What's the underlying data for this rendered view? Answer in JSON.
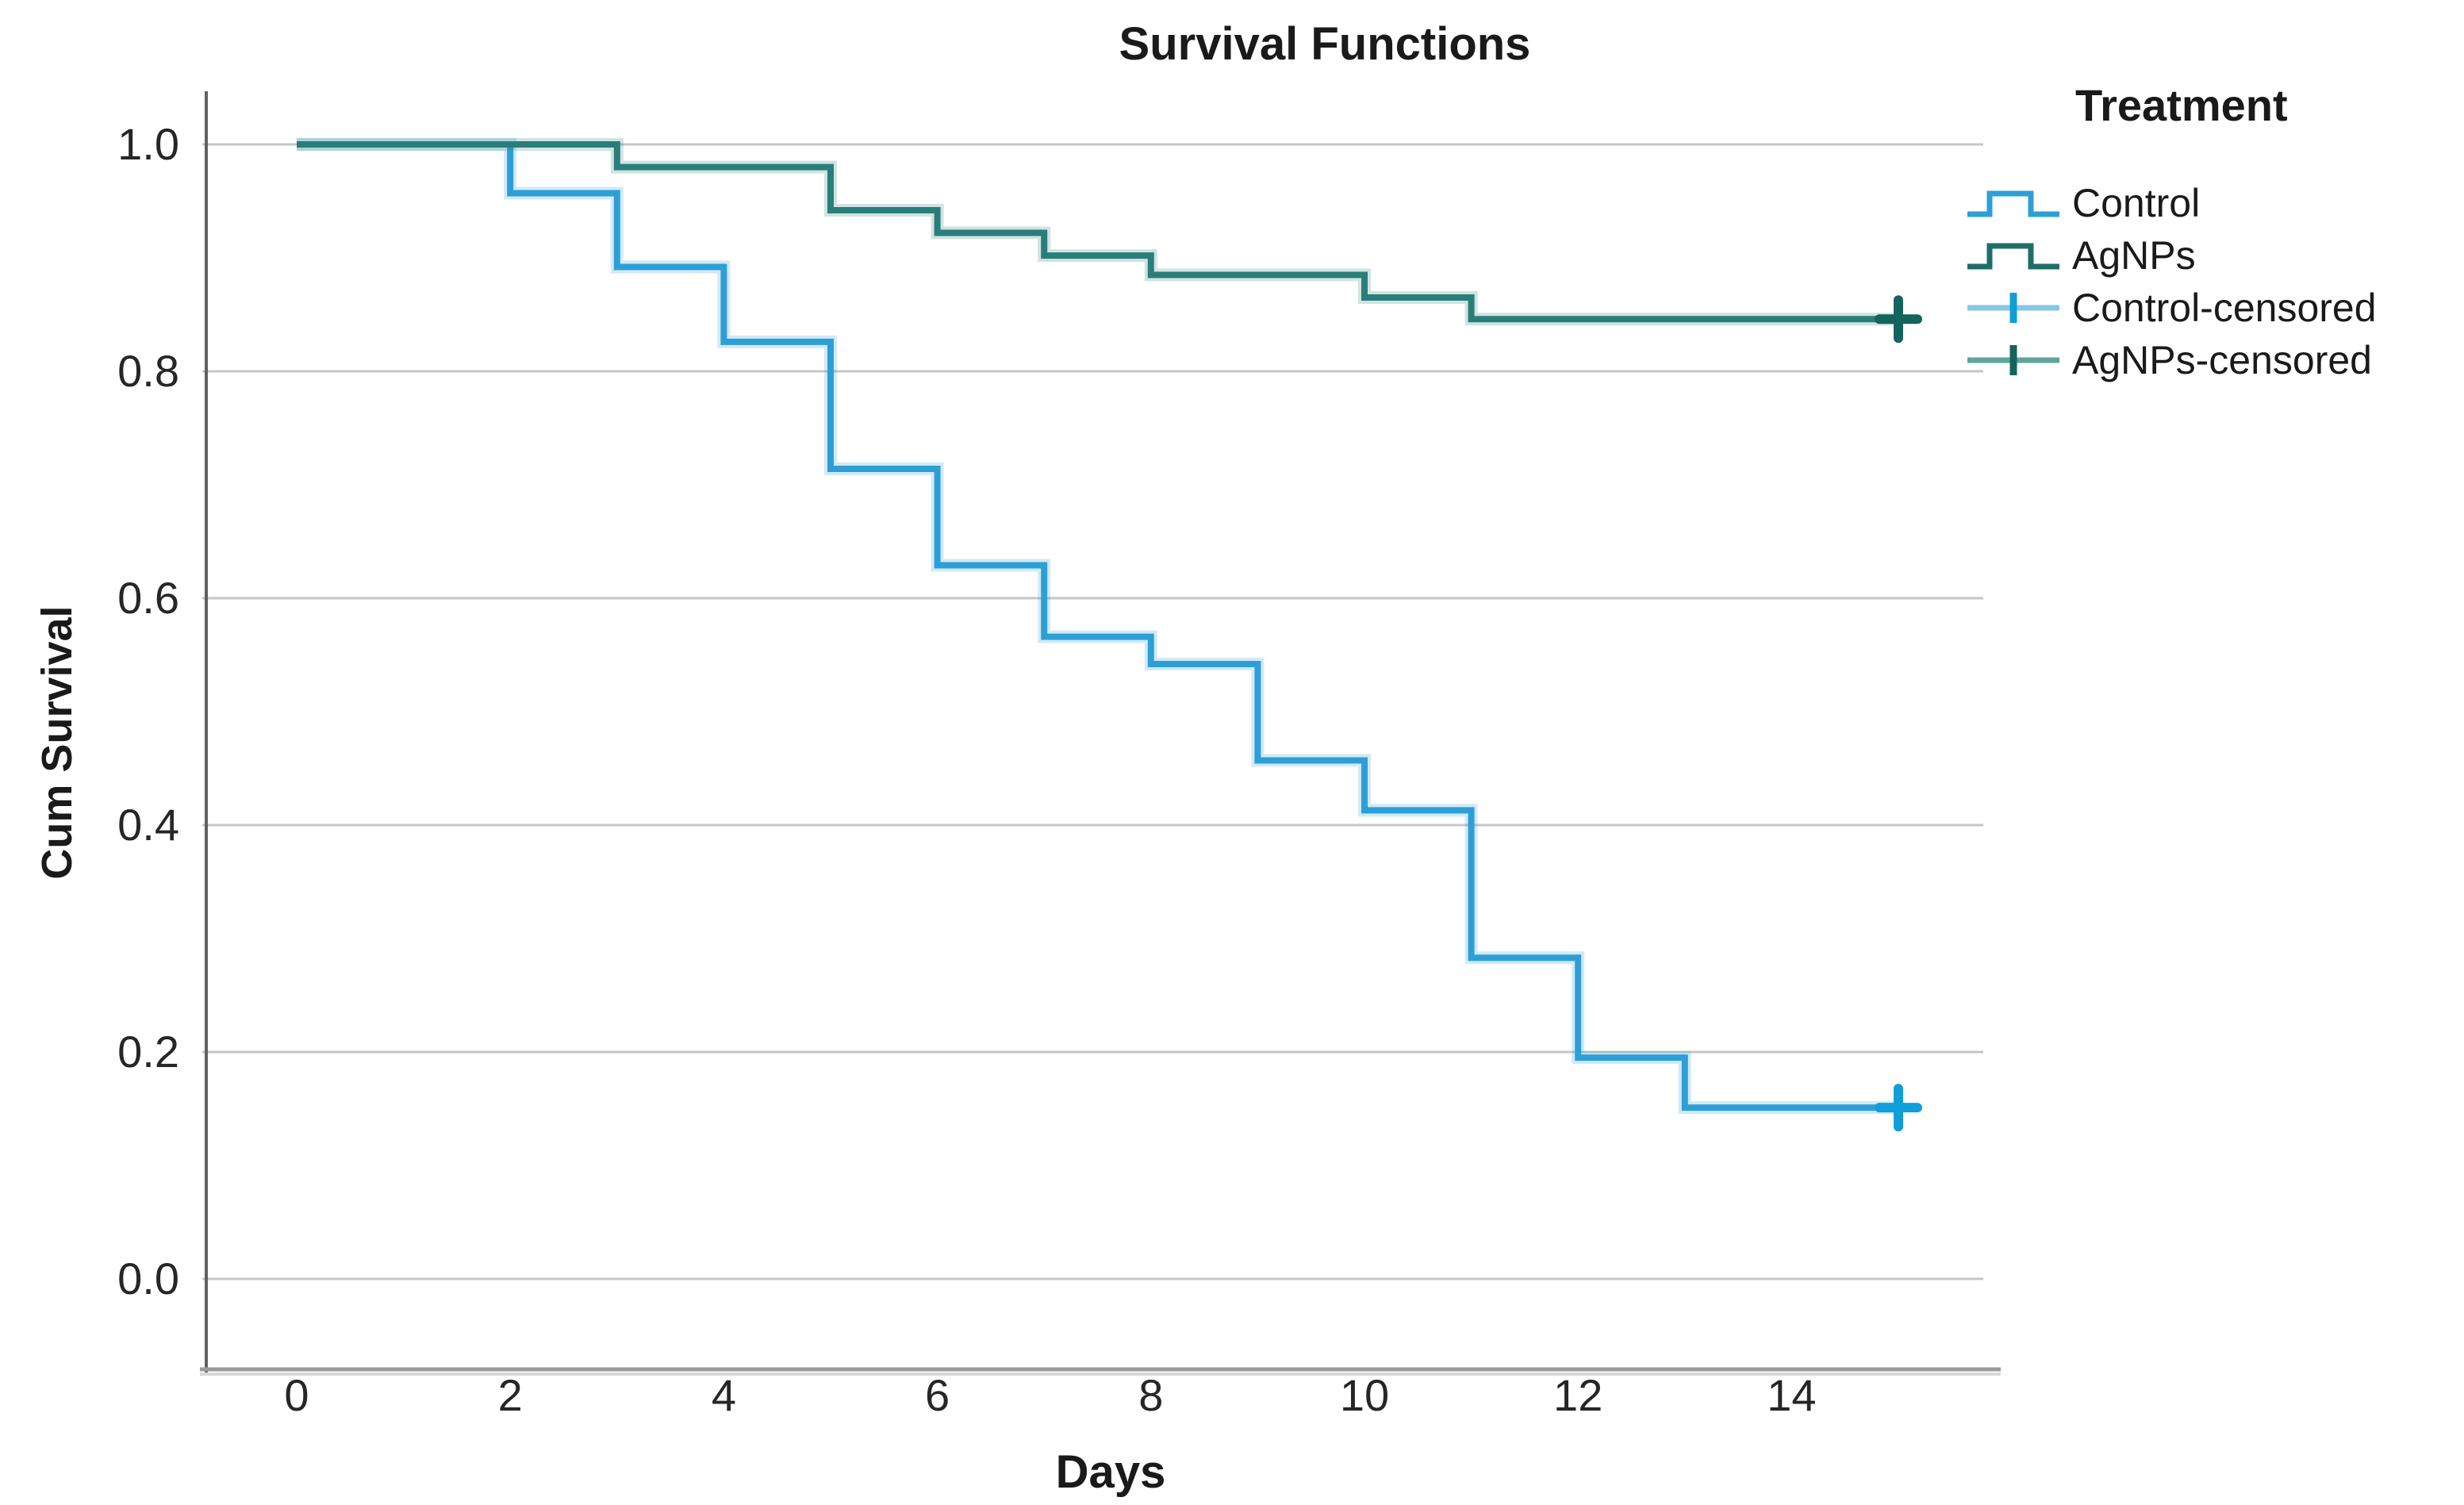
{
  "page": {
    "background": "#ffffff"
  },
  "chart_data": {
    "type": "line",
    "subtype": "kaplan-meier-step-survival",
    "title": "Survival Functions",
    "xlabel": "Days",
    "ylabel": "Cum Survival",
    "legend_title": "Treatment",
    "legend_position": "right",
    "grid": "horizontal",
    "xlim": [
      0,
      15
    ],
    "ylim": [
      0.0,
      1.0
    ],
    "x_ticks": [
      0,
      2,
      4,
      6,
      8,
      10,
      12,
      14
    ],
    "y_ticks": [
      1.0,
      0.8,
      0.6,
      0.4,
      0.2,
      0.0
    ],
    "series": [
      {
        "name": "Control",
        "color": "#2d9fd6",
        "censor_color": "#0f9fd8",
        "steps": [
          [
            0,
            1.0
          ],
          [
            2,
            0.957
          ],
          [
            3,
            0.892
          ],
          [
            4,
            0.826
          ],
          [
            5,
            0.714
          ],
          [
            6,
            0.629
          ],
          [
            7,
            0.566
          ],
          [
            8,
            0.542
          ],
          [
            9,
            0.457
          ],
          [
            10,
            0.413
          ],
          [
            11,
            0.283
          ],
          [
            12,
            0.195
          ],
          [
            13,
            0.151
          ]
        ],
        "end_day": 15,
        "censored": [
          [
            15,
            0.151
          ]
        ]
      },
      {
        "name": "AgNPs",
        "color": "#2a7e79",
        "censor_color": "#14635c",
        "steps": [
          [
            0,
            1.0
          ],
          [
            3,
            0.98
          ],
          [
            5,
            0.942
          ],
          [
            6,
            0.922
          ],
          [
            7,
            0.902
          ],
          [
            8,
            0.885
          ],
          [
            10,
            0.865
          ],
          [
            11,
            0.846
          ]
        ],
        "end_day": 15,
        "censored": [
          [
            15,
            0.846
          ]
        ]
      }
    ],
    "legend_entries": [
      {
        "label": "Control",
        "glyph": "step",
        "color": "#2d9fd6",
        "tick_color": "#2d9fd6"
      },
      {
        "label": "AgNPs",
        "glyph": "step",
        "color": "#1e6e66",
        "tick_color": "#1e6e66"
      },
      {
        "label": "Control-censored",
        "glyph": "censored",
        "color": "#86c7e8",
        "tick_color": "#0f9fd8"
      },
      {
        "label": "AgNPs-censored",
        "glyph": "censored",
        "color": "#5fa49b",
        "tick_color": "#14635c"
      }
    ],
    "axis_colors": {
      "gridline": "#c6c6c6",
      "spine": "#616161",
      "axis_band": "#9a9a9a",
      "tick_text": "#262626"
    }
  }
}
